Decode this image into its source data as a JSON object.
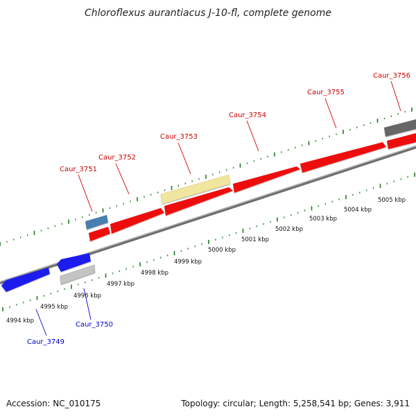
{
  "header": {
    "title": "Chloroflexus aurantiacus J-10-fl, complete genome"
  },
  "footer": {
    "accession": "Accession: NC_010175",
    "summary": "Topology: circular; Length: 5,258,541 bp; Genes: 3,911"
  },
  "scale_labels": [
    "4994 kbp",
    "4995 kbp",
    "4996 kbp",
    "4997 kbp",
    "4998 kbp",
    "4999 kbp",
    "5000 kbp",
    "5001 kbp",
    "5002 kbp",
    "5003 kbp",
    "5004 kbp",
    "5005 kbp"
  ],
  "genes": [
    {
      "id": "Caur_3749",
      "strand": "-",
      "color": "#1a1aee"
    },
    {
      "id": "Caur_3750",
      "strand": "-",
      "color": "#1a1aee"
    },
    {
      "id": "Caur_3751",
      "strand": "+",
      "color": "#4a7fb0"
    },
    {
      "id": "Caur_3752",
      "strand": "+",
      "color": "#ee1111"
    },
    {
      "id": "Caur_3753",
      "strand": "+",
      "color": "#ee1111"
    },
    {
      "id": "Caur_3754",
      "strand": "+",
      "color": "#ee1111"
    },
    {
      "id": "Caur_3755",
      "strand": "+",
      "color": "#ee1111"
    },
    {
      "id": "Caur_3756",
      "strand": "+",
      "color": "#777777"
    }
  ],
  "colors": {
    "forward_gene": "#ee1111",
    "reverse_gene": "#1a1aee",
    "forward_label": "#cc0000",
    "reverse_label": "#0000cc",
    "tick": "#1e7a1e",
    "backbone": "#8a8a8a"
  }
}
